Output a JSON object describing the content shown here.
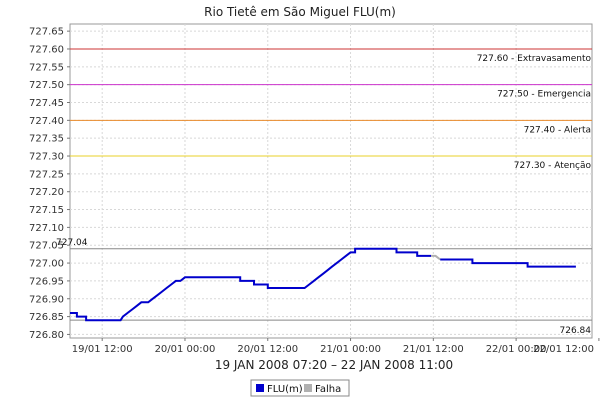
{
  "chart_data": {
    "type": "line",
    "title": "Rio Tietê em São Miguel FLU(m)",
    "date_range_label": "19 JAN 2008 07:20 – 22 JAN 2008 11:00",
    "x_range": [
      "2008-01-19T07:20",
      "2008-01-22T11:00"
    ],
    "ylim": [
      726.79,
      727.67
    ],
    "y_ticks": [
      "726.80",
      "726.85",
      "726.90",
      "726.95",
      "727.00",
      "727.05",
      "727.10",
      "727.15",
      "727.20",
      "727.25",
      "727.30",
      "727.35",
      "727.40",
      "727.45",
      "727.50",
      "727.55",
      "727.60",
      "727.65"
    ],
    "x_ticks": [
      {
        "label": "19/01 12:00",
        "t": "2008-01-19T12:00"
      },
      {
        "label": "20/01 00:00",
        "t": "2008-01-20T00:00"
      },
      {
        "label": "20/01 12:00",
        "t": "2008-01-20T12:00"
      },
      {
        "label": "21/01 00:00",
        "t": "2008-01-21T00:00"
      },
      {
        "label": "21/01 12:00",
        "t": "2008-01-21T12:00"
      },
      {
        "label": "22/01 00:00",
        "t": "2008-01-22T00:00"
      },
      {
        "label": "22/01 12:00",
        "t": "2008-01-22T12:00"
      }
    ],
    "reference_lines": [
      {
        "value": 727.6,
        "label": "727.60 - Extravasamento",
        "color": "#cc3333"
      },
      {
        "value": 727.5,
        "label": "727.50 - Emergencia",
        "color": "#cc33cc"
      },
      {
        "value": 727.4,
        "label": "727.40 - Alerta",
        "color": "#e88a2a"
      },
      {
        "value": 727.3,
        "label": "727.30 - Atenção",
        "color": "#e8d02a"
      }
    ],
    "markers": [
      {
        "value": 727.04,
        "label": "727.04",
        "color": "#888888",
        "label_side": "left"
      },
      {
        "value": 726.84,
        "label": "726.84",
        "color": "#888888",
        "label_side": "right"
      }
    ],
    "series": [
      {
        "name": "FLU(m)",
        "color": "#0000cc",
        "points": [
          [
            "2008-01-19T07:20",
            726.86
          ],
          [
            "2008-01-19T08:20",
            726.86
          ],
          [
            "2008-01-19T08:20",
            726.85
          ],
          [
            "2008-01-19T09:40",
            726.85
          ],
          [
            "2008-01-19T09:40",
            726.84
          ],
          [
            "2008-01-19T14:40",
            726.84
          ],
          [
            "2008-01-19T15:00",
            726.85
          ],
          [
            "2008-01-19T15:40",
            726.86
          ],
          [
            "2008-01-19T16:20",
            726.87
          ],
          [
            "2008-01-19T17:00",
            726.88
          ],
          [
            "2008-01-19T17:40",
            726.89
          ],
          [
            "2008-01-19T18:40",
            726.89
          ],
          [
            "2008-01-19T19:20",
            726.9
          ],
          [
            "2008-01-19T20:00",
            726.91
          ],
          [
            "2008-01-19T20:40",
            726.92
          ],
          [
            "2008-01-19T21:20",
            726.93
          ],
          [
            "2008-01-19T22:00",
            726.94
          ],
          [
            "2008-01-19T22:40",
            726.95
          ],
          [
            "2008-01-19T23:20",
            726.95
          ],
          [
            "2008-01-20T00:00",
            726.96
          ],
          [
            "2008-01-20T08:00",
            726.96
          ],
          [
            "2008-01-20T08:00",
            726.95
          ],
          [
            "2008-01-20T10:00",
            726.95
          ],
          [
            "2008-01-20T10:00",
            726.94
          ],
          [
            "2008-01-20T12:00",
            726.94
          ],
          [
            "2008-01-20T12:00",
            726.93
          ],
          [
            "2008-01-20T17:20",
            726.93
          ],
          [
            "2008-01-20T18:00",
            726.94
          ],
          [
            "2008-01-20T18:40",
            726.95
          ],
          [
            "2008-01-20T19:20",
            726.96
          ],
          [
            "2008-01-20T20:00",
            726.97
          ],
          [
            "2008-01-20T20:40",
            726.98
          ],
          [
            "2008-01-20T21:20",
            726.99
          ],
          [
            "2008-01-20T22:00",
            727.0
          ],
          [
            "2008-01-20T22:40",
            727.01
          ],
          [
            "2008-01-20T23:20",
            727.02
          ],
          [
            "2008-01-21T00:00",
            727.03
          ],
          [
            "2008-01-21T00:40",
            727.03
          ],
          [
            "2008-01-21T00:40",
            727.04
          ],
          [
            "2008-01-21T06:40",
            727.04
          ],
          [
            "2008-01-21T06:40",
            727.03
          ],
          [
            "2008-01-21T09:40",
            727.03
          ],
          [
            "2008-01-21T09:40",
            727.02
          ],
          [
            "2008-01-21T11:40",
            727.02
          ]
        ]
      },
      {
        "name": "Falha",
        "color": "#b0b0b0",
        "points": [
          [
            "2008-01-21T11:40",
            727.02
          ],
          [
            "2008-01-21T12:20",
            727.02
          ],
          [
            "2008-01-21T13:00",
            727.01
          ]
        ]
      },
      {
        "name": "FLU(m)",
        "color": "#0000cc",
        "points": [
          [
            "2008-01-21T13:00",
            727.01
          ],
          [
            "2008-01-21T17:40",
            727.01
          ],
          [
            "2008-01-21T17:40",
            727.0
          ],
          [
            "2008-01-22T01:40",
            727.0
          ],
          [
            "2008-01-22T01:40",
            726.99
          ],
          [
            "2008-01-22T08:40",
            726.99
          ]
        ]
      }
    ],
    "legend": {
      "placement": "bottom",
      "items": [
        {
          "name": "FLU(m)",
          "color": "#0000cc"
        },
        {
          "name": "Falha",
          "color": "#b0b0b0"
        }
      ]
    },
    "grid": true
  }
}
